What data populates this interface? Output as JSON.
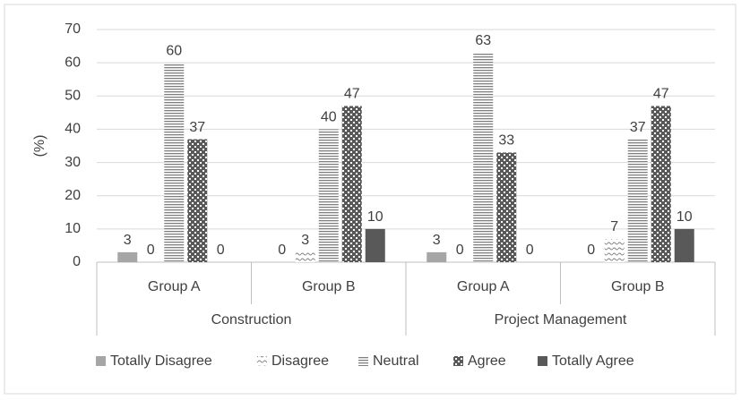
{
  "chart_data": {
    "type": "bar",
    "y_label": "(%)",
    "groups": [
      {
        "name": "Construction",
        "categories": [
          "Group A",
          "Group B"
        ]
      },
      {
        "name": "Project Management",
        "categories": [
          "Group A",
          "Group B"
        ]
      }
    ],
    "series": [
      {
        "name": "Totally Disagree",
        "color": "#a6a6a6",
        "pattern": "solid",
        "values": [
          3,
          0,
          3,
          0
        ]
      },
      {
        "name": "Disagree",
        "color": "#7f7f7f",
        "pattern": "wave",
        "values": [
          0,
          3,
          0,
          7
        ]
      },
      {
        "name": "Neutral",
        "color": "#7f7f7f",
        "pattern": "hlines",
        "values": [
          60,
          40,
          63,
          37
        ]
      },
      {
        "name": "Agree",
        "color": "#595959",
        "pattern": "dots",
        "values": [
          37,
          47,
          33,
          47
        ]
      },
      {
        "name": "Totally Agree",
        "color": "#595959",
        "pattern": "solid",
        "values": [
          0,
          10,
          0,
          10
        ]
      }
    ],
    "ylim": [
      0,
      70
    ],
    "yticks": [
      0,
      10,
      20,
      30,
      40,
      50,
      60,
      70
    ],
    "grid": true,
    "legend": "bottom"
  }
}
